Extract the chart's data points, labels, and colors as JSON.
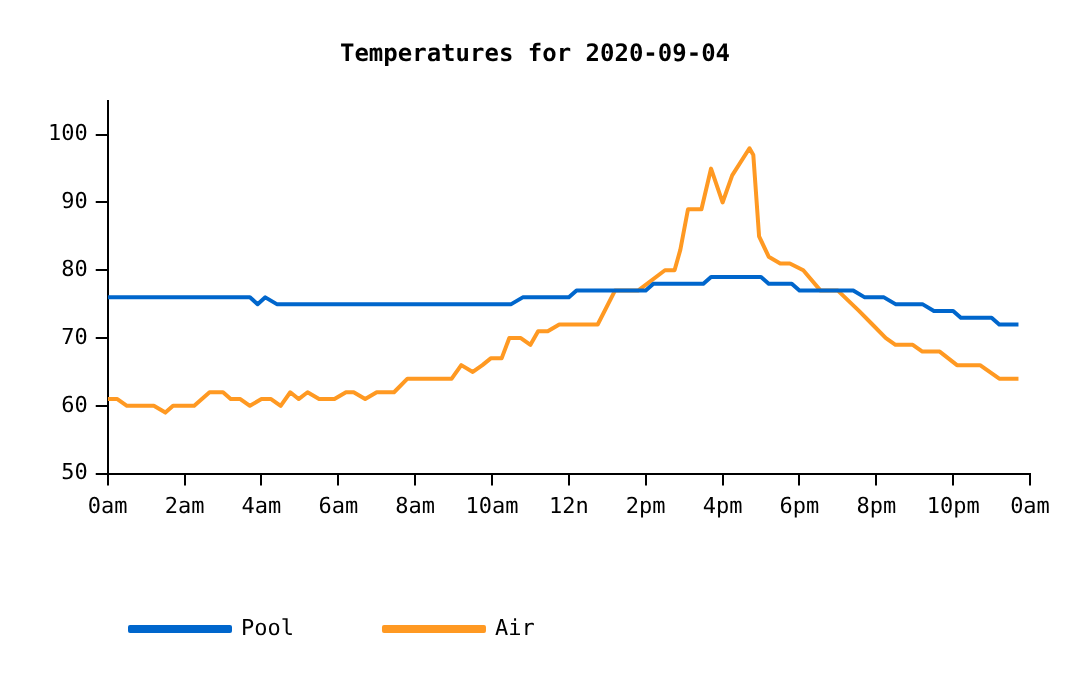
{
  "chart_data": {
    "type": "line",
    "title": "Temperatures for 2020-09-04",
    "xlim": [
      "2020-09-04T00:00",
      "2020-09-05T00:00"
    ],
    "xticks": [
      {
        "value": "2020-09-04T00:00",
        "label": "0am"
      },
      {
        "value": "2020-09-04T02:00",
        "label": "2am"
      },
      {
        "value": "2020-09-04T04:00",
        "label": "4am"
      },
      {
        "value": "2020-09-04T06:00",
        "label": "6am"
      },
      {
        "value": "2020-09-04T08:00",
        "label": "8am"
      },
      {
        "value": "2020-09-04T10:00",
        "label": "10am"
      },
      {
        "value": "2020-09-04T12:00",
        "label": "12n"
      },
      {
        "value": "2020-09-04T14:00",
        "label": "2pm"
      },
      {
        "value": "2020-09-04T16:00",
        "label": "4pm"
      },
      {
        "value": "2020-09-04T18:00",
        "label": "6pm"
      },
      {
        "value": "2020-09-04T20:00",
        "label": "8pm"
      },
      {
        "value": "2020-09-04T22:00",
        "label": "10pm"
      },
      {
        "value": "2020-09-05T00:00",
        "label": "0am"
      }
    ],
    "ylim": [
      50,
      105
    ],
    "yticks": [
      50,
      60,
      70,
      80,
      90,
      100
    ],
    "grid": false,
    "legend": "bottom",
    "marker": "none",
    "line_style": "solid",
    "series": [
      {
        "name": "Pool",
        "color": "#0066cc",
        "x": [
          "2020-09-04T00:00",
          "2020-09-04T03:42",
          "2020-09-04T03:54",
          "2020-09-04T04:06",
          "2020-09-04T04:24",
          "2020-09-04T10:30",
          "2020-09-04T10:48",
          "2020-09-04T12:00",
          "2020-09-04T12:12",
          "2020-09-04T14:00",
          "2020-09-04T14:12",
          "2020-09-04T15:30",
          "2020-09-04T15:42",
          "2020-09-04T17:00",
          "2020-09-04T17:12",
          "2020-09-04T17:48",
          "2020-09-04T18:00",
          "2020-09-04T19:24",
          "2020-09-04T19:42",
          "2020-09-04T20:12",
          "2020-09-04T20:30",
          "2020-09-04T21:12",
          "2020-09-04T21:30",
          "2020-09-04T22:00",
          "2020-09-04T22:12",
          "2020-09-04T23:00",
          "2020-09-04T23:12",
          "2020-09-04T23:42"
        ],
        "values": [
          76,
          76,
          75,
          76,
          75,
          75,
          76,
          76,
          77,
          77,
          78,
          78,
          79,
          79,
          78,
          78,
          77,
          77,
          76,
          76,
          75,
          75,
          74,
          74,
          73,
          73,
          72,
          72
        ]
      },
      {
        "name": "Air",
        "color": "#ff9922",
        "x": [
          "2020-09-04T00:00",
          "2020-09-04T00:15",
          "2020-09-04T00:30",
          "2020-09-04T01:12",
          "2020-09-04T01:30",
          "2020-09-04T01:42",
          "2020-09-04T02:15",
          "2020-09-04T02:39",
          "2020-09-04T03:00",
          "2020-09-04T03:12",
          "2020-09-04T03:27",
          "2020-09-04T03:42",
          "2020-09-04T04:00",
          "2020-09-04T04:15",
          "2020-09-04T04:30",
          "2020-09-04T04:45",
          "2020-09-04T04:58",
          "2020-09-04T05:12",
          "2020-09-04T05:30",
          "2020-09-04T05:54",
          "2020-09-04T06:12",
          "2020-09-04T06:24",
          "2020-09-04T06:42",
          "2020-09-04T07:00",
          "2020-09-04T07:27",
          "2020-09-04T07:48",
          "2020-09-04T08:57",
          "2020-09-04T09:12",
          "2020-09-04T09:30",
          "2020-09-04T09:45",
          "2020-09-04T09:58",
          "2020-09-04T10:15",
          "2020-09-04T10:27",
          "2020-09-04T10:45",
          "2020-09-04T11:00",
          "2020-09-04T11:12",
          "2020-09-04T11:27",
          "2020-09-04T11:45",
          "2020-09-04T12:24",
          "2020-09-04T12:45",
          "2020-09-04T13:12",
          "2020-09-04T13:48",
          "2020-09-04T14:30",
          "2020-09-04T14:45",
          "2020-09-04T14:54",
          "2020-09-04T15:06",
          "2020-09-04T15:27",
          "2020-09-04T15:42",
          "2020-09-04T16:00",
          "2020-09-04T16:15",
          "2020-09-04T16:42",
          "2020-09-04T16:48",
          "2020-09-04T16:57",
          "2020-09-04T17:12",
          "2020-09-04T17:30",
          "2020-09-04T17:45",
          "2020-09-04T18:06",
          "2020-09-04T18:33",
          "2020-09-04T19:00",
          "2020-09-04T19:33",
          "2020-09-04T19:54",
          "2020-09-04T20:15",
          "2020-09-04T20:30",
          "2020-09-04T20:57",
          "2020-09-04T21:12",
          "2020-09-04T21:39",
          "2020-09-04T22:06",
          "2020-09-04T22:42",
          "2020-09-04T23:12",
          "2020-09-04T23:42"
        ],
        "values": [
          61,
          61,
          60,
          60,
          59,
          60,
          60,
          62,
          62,
          61,
          61,
          60,
          61,
          61,
          60,
          62,
          61,
          62,
          61,
          61,
          62,
          62,
          61,
          62,
          62,
          64,
          64,
          66,
          65,
          66,
          67,
          67,
          70,
          70,
          69,
          71,
          71,
          72,
          72,
          72,
          77,
          77,
          80,
          80,
          83,
          89,
          89,
          95,
          90,
          94,
          98,
          97,
          85,
          82,
          81,
          81,
          80,
          77,
          77,
          74,
          72,
          70,
          69,
          69,
          68,
          68,
          66,
          66,
          64,
          64
        ]
      }
    ]
  }
}
